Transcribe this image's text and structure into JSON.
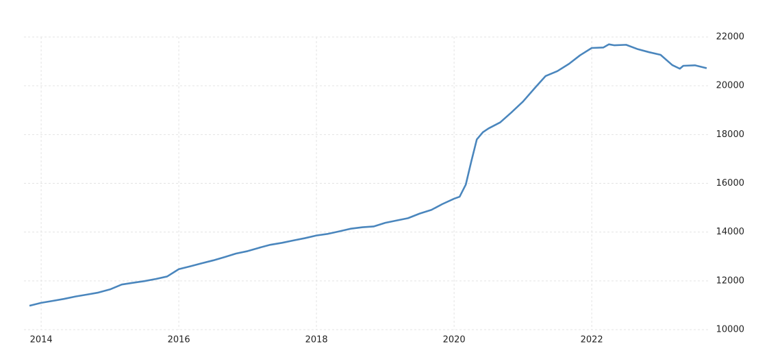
{
  "chart_data": {
    "type": "line",
    "x": [
      2013.83,
      2014.0,
      2014.17,
      2014.33,
      2014.5,
      2014.67,
      2014.83,
      2015.0,
      2015.17,
      2015.33,
      2015.5,
      2015.67,
      2015.83,
      2016.0,
      2016.17,
      2016.33,
      2016.5,
      2016.67,
      2016.83,
      2017.0,
      2017.17,
      2017.33,
      2017.5,
      2017.67,
      2017.83,
      2018.0,
      2018.17,
      2018.33,
      2018.5,
      2018.67,
      2018.83,
      2019.0,
      2019.17,
      2019.33,
      2019.5,
      2019.67,
      2019.83,
      2020.0,
      2020.08,
      2020.17,
      2020.25,
      2020.33,
      2020.42,
      2020.5,
      2020.67,
      2020.83,
      2021.0,
      2021.17,
      2021.33,
      2021.5,
      2021.67,
      2021.83,
      2022.0,
      2022.17,
      2022.25,
      2022.33,
      2022.5,
      2022.67,
      2022.83,
      2023.0,
      2023.17,
      2023.28,
      2023.33,
      2023.5,
      2023.67
    ],
    "series": [
      {
        "color": "#4a86bd",
        "values": [
          10980,
          11100,
          11180,
          11260,
          11360,
          11440,
          11520,
          11650,
          11850,
          11920,
          11990,
          12080,
          12180,
          12480,
          12600,
          12720,
          12840,
          12980,
          13120,
          13220,
          13360,
          13480,
          13560,
          13660,
          13750,
          13860,
          13930,
          14030,
          14140,
          14200,
          14230,
          14380,
          14480,
          14570,
          14760,
          14910,
          15150,
          15370,
          15450,
          15950,
          16900,
          17800,
          18100,
          18250,
          18500,
          18900,
          19350,
          19900,
          20400,
          20600,
          20900,
          21250,
          21550,
          21570,
          21700,
          21660,
          21680,
          21500,
          21380,
          21270,
          20850,
          20700,
          20820,
          20840,
          20720
        ]
      }
    ],
    "xlim": [
      2013.75,
      2023.7
    ],
    "xticks": [
      2014,
      2016,
      2018,
      2020,
      2022
    ],
    "ylim": [
      10000,
      22000
    ],
    "yticks": [
      10000,
      12000,
      14000,
      16000,
      18000,
      20000,
      22000
    ],
    "grid": true
  }
}
